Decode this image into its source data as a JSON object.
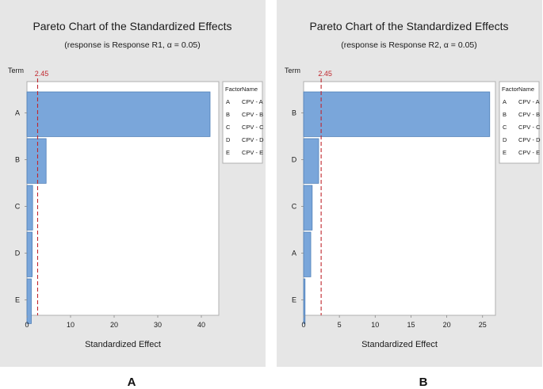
{
  "chart_data": [
    {
      "type": "bar",
      "orientation": "horizontal",
      "title": "Pareto Chart of the Standardized Effects",
      "subtitle": "(response is Response R1, α = 0.05)",
      "xlabel": "Standardized Effect",
      "ylabel": "Term",
      "categories": [
        "A",
        "B",
        "C",
        "D",
        "E"
      ],
      "values": [
        42,
        4.4,
        1.3,
        1.2,
        1.0
      ],
      "xlim": [
        0,
        44
      ],
      "xticks": [
        0,
        10,
        20,
        30,
        40
      ],
      "reference_line": {
        "value": 2.45,
        "label": "2.45",
        "color": "#c0262d"
      },
      "bar_color": "#7aa6da",
      "legend": {
        "position": "right",
        "headers": [
          "Factor",
          "Name"
        ],
        "rows": [
          [
            "A",
            "CPV - A"
          ],
          [
            "B",
            "CPV - B"
          ],
          [
            "C",
            "CPV - C"
          ],
          [
            "D",
            "CPV - D"
          ],
          [
            "E",
            "CPV - E"
          ]
        ]
      },
      "panel_label": "A"
    },
    {
      "type": "bar",
      "orientation": "horizontal",
      "title": "Pareto Chart of the Standardized Effects",
      "subtitle": "(response is Response R2, α = 0.05)",
      "xlabel": "Standardized Effect",
      "ylabel": "Term",
      "categories": [
        "B",
        "D",
        "C",
        "A",
        "E"
      ],
      "values": [
        26,
        2.1,
        1.2,
        1.0,
        0.2
      ],
      "xlim": [
        0,
        26.8
      ],
      "xticks": [
        0,
        5,
        10,
        15,
        20,
        25
      ],
      "reference_line": {
        "value": 2.45,
        "label": "2.45",
        "color": "#c0262d"
      },
      "bar_color": "#7aa6da",
      "legend": {
        "position": "right",
        "headers": [
          "Factor",
          "Name"
        ],
        "rows": [
          [
            "A",
            "CPV - A"
          ],
          [
            "B",
            "CPV - B"
          ],
          [
            "C",
            "CPV - C"
          ],
          [
            "D",
            "CPV - D"
          ],
          [
            "E",
            "CPV - E"
          ]
        ]
      },
      "panel_label": "B"
    }
  ]
}
